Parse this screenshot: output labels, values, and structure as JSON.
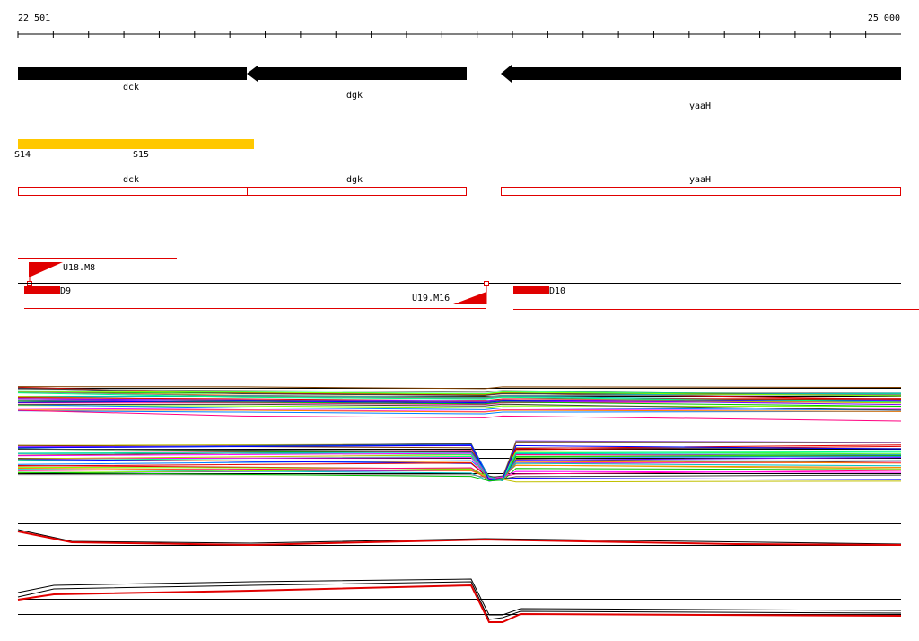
{
  "ruler": {
    "start": "22 501",
    "end": "25 000"
  },
  "genes": [
    {
      "label": "dck"
    },
    {
      "label": "dgk"
    },
    {
      "label": "yaaH"
    }
  ],
  "segments": [
    {
      "label": "S14"
    },
    {
      "label": "S15"
    }
  ],
  "boxes": [
    {
      "label": "dck"
    },
    {
      "label": "dgk"
    },
    {
      "label": "yaaH"
    }
  ],
  "features": [
    {
      "label": "U18.M8"
    },
    {
      "label": "D9"
    },
    {
      "label": "U19.M16"
    },
    {
      "label": "D10"
    }
  ]
}
